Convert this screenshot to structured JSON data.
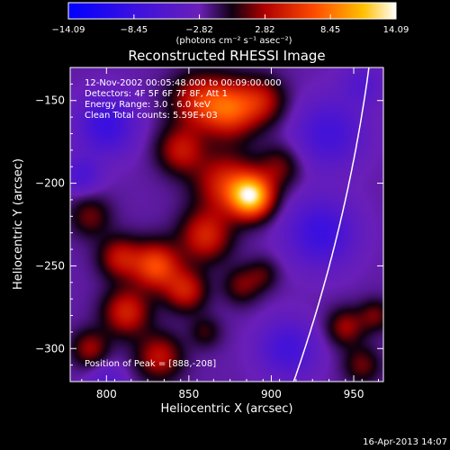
{
  "chart_data": {
    "type": "heatmap",
    "title": "Reconstructed RHESSI Image",
    "xlabel": "Heliocentric X (arcsec)",
    "ylabel": "Heliocentric Y (arcsec)",
    "xlim": [
      778,
      968
    ],
    "ylim": [
      -320,
      -130
    ],
    "x_ticks": [
      800,
      850,
      900,
      950
    ],
    "y_ticks": [
      -150,
      -200,
      -250,
      -300
    ],
    "colorbar": {
      "ticks": [
        "-14.09",
        "-8.45",
        "-2.82",
        "2.82",
        "8.45",
        "14.09"
      ],
      "range": [
        -14.09,
        14.09
      ],
      "units_line": "(photons cm⁻² s⁻¹ asec⁻²)"
    },
    "annotations": {
      "line1": "12-Nov-2002 00:05:48.000 to 00:09:00.000",
      "line2": "Detectors: 4F 5F 6F 7F 8F, Att 1",
      "line3": "Energy Range: 3.0 - 6.0 keV",
      "line4": "Clean     Total counts: 5.59E+03",
      "peak": "Position of Peak = [888,-208]"
    },
    "peak_position": [
      888,
      -208
    ],
    "footer": "16-Apr-2013 14:07",
    "blobs": [
      {
        "x": 888,
        "y": -208,
        "amp": 14.0,
        "s": 9
      },
      {
        "x": 872,
        "y": -200,
        "amp": 7.0,
        "s": 13
      },
      {
        "x": 875,
        "y": -155,
        "amp": 9.0,
        "s": 12
      },
      {
        "x": 855,
        "y": -150,
        "amp": 6.0,
        "s": 12
      },
      {
        "x": 895,
        "y": -150,
        "amp": 5.0,
        "s": 10
      },
      {
        "x": 845,
        "y": -180,
        "amp": 6.0,
        "s": 10
      },
      {
        "x": 860,
        "y": -232,
        "amp": 7.0,
        "s": 11
      },
      {
        "x": 905,
        "y": -190,
        "amp": 4.0,
        "s": 9
      },
      {
        "x": 830,
        "y": -250,
        "amp": 9.0,
        "s": 10
      },
      {
        "x": 808,
        "y": -245,
        "amp": 6.0,
        "s": 9
      },
      {
        "x": 790,
        "y": -220,
        "amp": 4.0,
        "s": 9
      },
      {
        "x": 848,
        "y": -265,
        "amp": 6.5,
        "s": 9
      },
      {
        "x": 812,
        "y": -278,
        "amp": 7.0,
        "s": 10
      },
      {
        "x": 832,
        "y": -305,
        "amp": 6.0,
        "s": 10
      },
      {
        "x": 790,
        "y": -300,
        "amp": 5.0,
        "s": 8
      },
      {
        "x": 882,
        "y": -262,
        "amp": 4.0,
        "s": 8
      },
      {
        "x": 895,
        "y": -255,
        "amp": 3.0,
        "s": 7
      },
      {
        "x": 860,
        "y": -290,
        "amp": 3.0,
        "s": 7
      },
      {
        "x": 945,
        "y": -287,
        "amp": 5.0,
        "s": 8
      },
      {
        "x": 963,
        "y": -280,
        "amp": 4.0,
        "s": 7
      },
      {
        "x": 955,
        "y": -310,
        "amp": 4.0,
        "s": 8
      },
      {
        "x": 800,
        "y": -165,
        "amp": -6.0,
        "s": 12
      },
      {
        "x": 935,
        "y": -170,
        "amp": -5.0,
        "s": 14
      },
      {
        "x": 930,
        "y": -230,
        "amp": -6.0,
        "s": 14
      },
      {
        "x": 910,
        "y": -300,
        "amp": -5.0,
        "s": 12
      },
      {
        "x": 785,
        "y": -195,
        "amp": -4.0,
        "s": 8
      },
      {
        "x": 955,
        "y": -140,
        "amp": -3.0,
        "s": 9
      },
      {
        "x": 800,
        "y": -320,
        "amp": -3.0,
        "s": 8
      }
    ],
    "grid": false
  },
  "colors": {
    "bg": "#000000",
    "text": "#ffffff",
    "limb": "#ffffff"
  }
}
